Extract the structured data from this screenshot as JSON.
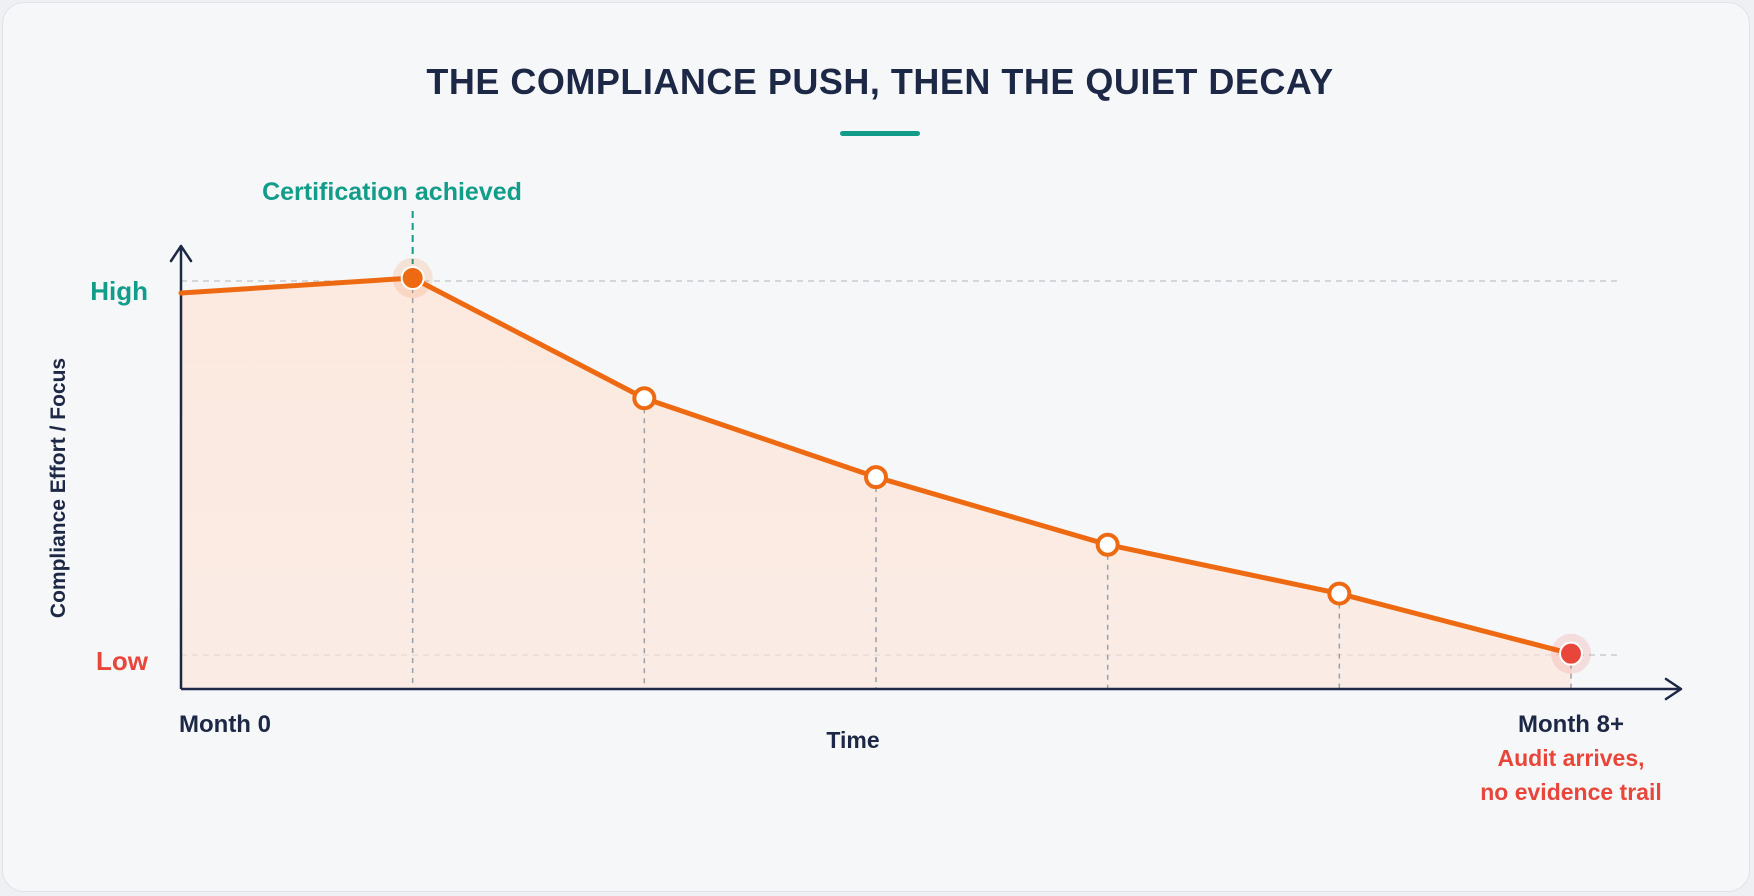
{
  "title": "THE COMPLIANCE PUSH, THEN THE QUIET DECAY",
  "colors": {
    "title": "#1c2845",
    "accent_teal": "#119c8a",
    "line": "#ee6a12",
    "alert_red": "#e8463a",
    "axis": "#1c2845",
    "fill": "#fde5d8"
  },
  "chart_data": {
    "type": "area",
    "x": [
      0,
      1,
      2,
      3,
      4,
      5,
      6
    ],
    "values": [
      0.96,
      1.0,
      0.68,
      0.47,
      0.29,
      0.16,
      0.0
    ],
    "ylim": [
      -0.094,
      1.0
    ],
    "xlim": [
      0,
      6
    ],
    "xlabel": "Time",
    "ylabel": "Compliance Effort / Focus",
    "y_ticks": {
      "high": "High",
      "low": "Low"
    },
    "x_ticks": {
      "start": "Month 0",
      "end": "Month 8+"
    },
    "grid": "dashed reference lines at High and Low; vertical dashed drop lines at each marker",
    "markers": [
      {
        "x": 1,
        "style": "filled-orange"
      },
      {
        "x": 2,
        "style": "hollow"
      },
      {
        "x": 3,
        "style": "hollow"
      },
      {
        "x": 4,
        "style": "hollow"
      },
      {
        "x": 5,
        "style": "hollow"
      },
      {
        "x": 6,
        "style": "filled-red"
      }
    ],
    "annotations": {
      "peak": "Certification achieved",
      "end_line1": "Audit arrives,",
      "end_line2": "no evidence trail"
    }
  }
}
